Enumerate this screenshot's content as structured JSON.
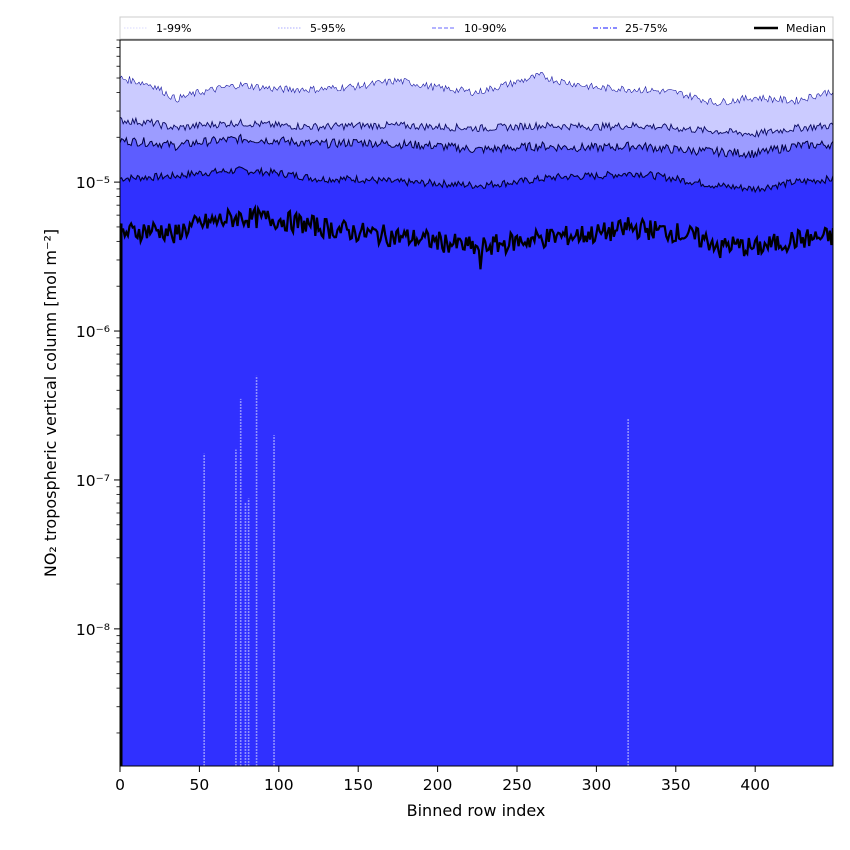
{
  "chart_data": {
    "type": "area",
    "title": "",
    "xlabel": "Binned row index",
    "ylabel": "NO₂ tropospheric vertical column [mol m⁻²]",
    "xlim": [
      0,
      449
    ],
    "ylim": [
      1.2e-09,
      9e-05
    ],
    "yscale": "log",
    "grid": false,
    "legend_placement": "top, above plot",
    "x_ticks": [
      0,
      50,
      100,
      150,
      200,
      250,
      300,
      350,
      400
    ],
    "y_ticks": [
      {
        "value": 1e-08,
        "label": "10⁻⁸"
      },
      {
        "value": 1e-07,
        "label": "10⁻⁷"
      },
      {
        "value": 1e-06,
        "label": "10⁻⁶"
      },
      {
        "value": 1e-05,
        "label": "10⁻⁵"
      }
    ],
    "legend": [
      {
        "label": "1-99%",
        "color": "#e6e6ff",
        "style": "dotted"
      },
      {
        "label": "5-95%",
        "color": "#c8c8ff",
        "style": "dotted"
      },
      {
        "label": "10-90%",
        "color": "#9a9aff",
        "style": "dashed"
      },
      {
        "label": "25-75%",
        "color": "#6464ff",
        "style": "dashdot"
      },
      {
        "label": "Median",
        "color": "#000000",
        "style": "solid"
      }
    ],
    "band_colors": {
      "p1_99": "#3030ff",
      "p5_95": "#cbcbff",
      "p10_90": "#9c9cff",
      "p25_75": "#5d5dff",
      "median": "#000000"
    },
    "x": [
      0,
      20,
      35,
      50,
      75,
      100,
      125,
      150,
      175,
      200,
      225,
      250,
      265,
      275,
      300,
      325,
      350,
      375,
      400,
      425,
      449
    ],
    "series": [
      {
        "name": "p1",
        "values": [
          1.2e-09,
          1.2e-09,
          1.2e-09,
          1.2e-09,
          1.2e-09,
          1.2e-09,
          1.2e-09,
          1.2e-09,
          1.2e-09,
          1.2e-09,
          1.2e-09,
          1.2e-09,
          1.2e-09,
          1.2e-09,
          1.2e-09,
          1.2e-09,
          1.2e-09,
          1.2e-09,
          1.2e-09,
          1.2e-09,
          1.2e-09
        ]
      },
      {
        "name": "p5",
        "values": [
          1.06e-05,
          1.08e-05,
          1.1e-05,
          1.15e-05,
          1.2e-05,
          1.15e-05,
          1.05e-05,
          1.05e-05,
          1e-05,
          9.8e-06,
          9.5e-06,
          1e-05,
          1.05e-05,
          1.08e-05,
          1.1e-05,
          1.15e-05,
          1.05e-05,
          9.5e-06,
          9e-06,
          1e-05,
          1.05e-05
        ]
      },
      {
        "name": "p10",
        "values": [
          1.9e-05,
          1.85e-05,
          1.75e-05,
          1.85e-05,
          1.95e-05,
          1.9e-05,
          1.8e-05,
          1.85e-05,
          1.8e-05,
          1.75e-05,
          1.65e-05,
          1.7e-05,
          1.75e-05,
          1.72e-05,
          1.7e-05,
          1.75e-05,
          1.65e-05,
          1.6e-05,
          1.55e-05,
          1.75e-05,
          1.8e-05
        ]
      },
      {
        "name": "p25",
        "values": [
          2.6e-05,
          2.5e-05,
          2.3e-05,
          2.4e-05,
          2.5e-05,
          2.4e-05,
          2.35e-05,
          2.4e-05,
          2.4e-05,
          2.35e-05,
          2.3e-05,
          2.35e-05,
          2.4e-05,
          2.38e-05,
          2.35e-05,
          2.4e-05,
          2.3e-05,
          2.2e-05,
          2.1e-05,
          2.3e-05,
          2.4e-05
        ]
      },
      {
        "name": "p75",
        "values": [
          5e-05,
          4.5e-05,
          3.6e-05,
          4e-05,
          4.5e-05,
          4.2e-05,
          4.2e-05,
          4.4e-05,
          4.8e-05,
          4.3e-05,
          4e-05,
          4.7e-05,
          5.2e-05,
          4.8e-05,
          4.3e-05,
          4.2e-05,
          4e-05,
          3.4e-05,
          3.7e-05,
          3.5e-05,
          4.1e-05
        ]
      },
      {
        "name": "p95",
        "values": [
          9e-05,
          9e-05,
          9e-05,
          9e-05,
          9e-05,
          9e-05,
          9e-05,
          9e-05,
          9e-05,
          9e-05,
          9e-05,
          9e-05,
          9e-05,
          9e-05,
          9e-05,
          9e-05,
          9e-05,
          9e-05,
          9e-05,
          9e-05,
          9e-05
        ]
      },
      {
        "name": "Median",
        "values": [
          4.5e-06,
          4.8e-06,
          4.6e-06,
          5.2e-06,
          5.8e-06,
          5.6e-06,
          5e-06,
          4.6e-06,
          4.3e-06,
          4e-06,
          3.6e-06,
          4e-06,
          4.2e-06,
          4.3e-06,
          4.5e-06,
          4.9e-06,
          4.6e-06,
          3.9e-06,
          3.6e-06,
          4.1e-06,
          4.3e-06
        ]
      }
    ],
    "spikes": [
      {
        "x": 53,
        "top": 1.5e-07
      },
      {
        "x": 73,
        "top": 1.6e-07
      },
      {
        "x": 76,
        "top": 3.5e-07
      },
      {
        "x": 79,
        "top": 7e-08
      },
      {
        "x": 81,
        "top": 7.5e-08
      },
      {
        "x": 86,
        "top": 5e-07
      },
      {
        "x": 97,
        "top": 2e-07
      },
      {
        "x": 320,
        "top": 2.6e-07
      }
    ]
  }
}
